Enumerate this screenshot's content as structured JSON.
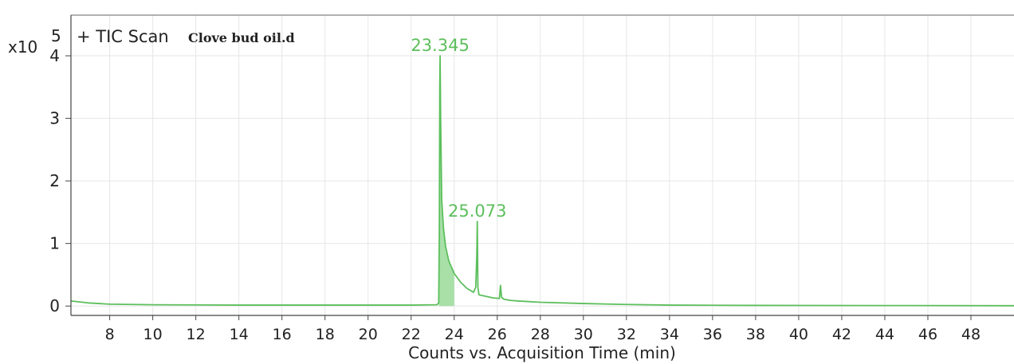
{
  "chart_data": {
    "type": "line",
    "title_prefix": "+ TIC Scan",
    "title_file": "Clove bud oil.d",
    "y_exponent_label": "x10",
    "y_exponent_power": "5",
    "xlabel": "Counts vs. Acquisition Time (min)",
    "ylabel": "",
    "xlim": [
      6.2,
      50
    ],
    "ylim": [
      -0.15,
      4.65
    ],
    "x_ticks": [
      8,
      10,
      12,
      14,
      16,
      18,
      20,
      22,
      24,
      26,
      28,
      30,
      32,
      34,
      36,
      38,
      40,
      42,
      44,
      46,
      48
    ],
    "y_ticks": [
      0,
      1,
      2,
      3,
      4
    ],
    "grid": true,
    "series_color": "#5cbf5c",
    "fill_color": "#a8e0a8",
    "series": [
      {
        "x": [
          6.2,
          6.5,
          7,
          8,
          10,
          14,
          18,
          22,
          23.2,
          23.28,
          23.31,
          23.33,
          23.345,
          23.37,
          23.42,
          23.5,
          23.6,
          23.75,
          24.0,
          24.3,
          24.6,
          24.9,
          25.0,
          25.05,
          25.073,
          25.1,
          25.15,
          25.4,
          25.8,
          26.1,
          26.15,
          26.2,
          26.3,
          26.6,
          27.0,
          28.0,
          30.0,
          32.0,
          34.0,
          38.0,
          44.0,
          50.0
        ],
        "values": [
          0.08,
          0.07,
          0.05,
          0.03,
          0.02,
          0.015,
          0.015,
          0.015,
          0.02,
          0.05,
          1.2,
          3.5,
          4.0,
          3.0,
          1.7,
          1.25,
          0.95,
          0.72,
          0.52,
          0.38,
          0.28,
          0.22,
          0.3,
          0.8,
          1.35,
          0.3,
          0.18,
          0.16,
          0.13,
          0.12,
          0.33,
          0.14,
          0.11,
          0.09,
          0.08,
          0.06,
          0.04,
          0.025,
          0.015,
          0.01,
          0.008,
          0.005
        ]
      }
    ],
    "annotations": [
      {
        "x": 23.345,
        "y": 4.0,
        "text": "23.345"
      },
      {
        "x": 25.073,
        "y": 1.35,
        "text": "25.073"
      }
    ]
  }
}
